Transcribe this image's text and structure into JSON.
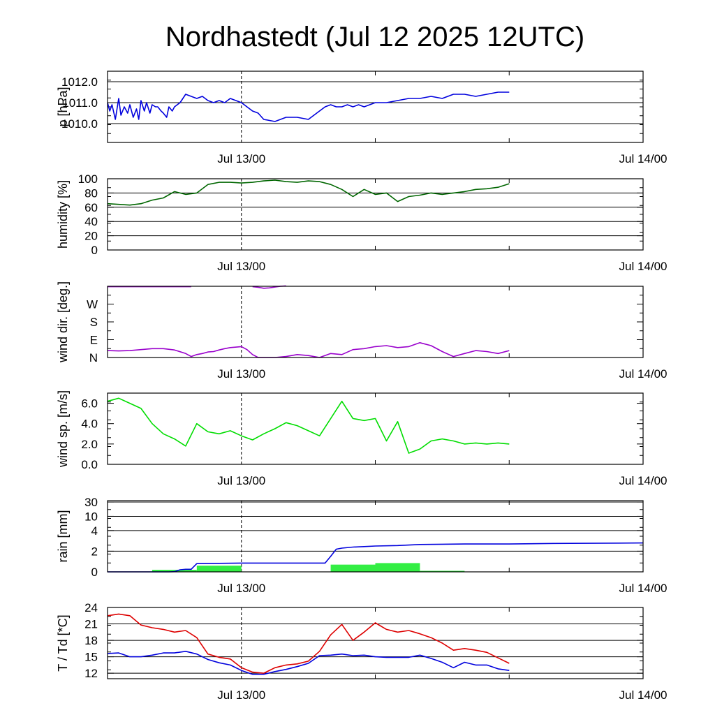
{
  "title": "Nordhastedt (Jul 12 2025 12UTC)",
  "x_tick_labels": [
    "Jul 13/00",
    "Jul 14/00"
  ],
  "chart_data": [
    {
      "id": "pressure",
      "type": "line",
      "ylabel": "p [hPa]",
      "ylim": [
        1009.1,
        1012.5
      ],
      "yticks": [
        {
          "label": "1010.0",
          "value": 1010.0
        },
        {
          "label": "1011.0",
          "value": 1011.0
        },
        {
          "label": "1012.0",
          "value": 1012.0
        }
      ],
      "gridlines": [
        1010.0,
        1011.0,
        1012.0
      ],
      "xlim": [
        -12,
        36
      ],
      "series": [
        {
          "color": "#0000dd",
          "x": [
            -12,
            -11.8,
            -11.6,
            -11.3,
            -11,
            -10.8,
            -10.5,
            -10.2,
            -10,
            -9.7,
            -9.4,
            -9.2,
            -9,
            -8.7,
            -8.5,
            -8.2,
            -8,
            -7.7,
            -7.5,
            -7.2,
            -7,
            -6.7,
            -6.5,
            -6.2,
            -6,
            -5.5,
            -5,
            -4.5,
            -4,
            -3.5,
            -3,
            -2.5,
            -2,
            -1.5,
            -1,
            -0.5,
            0,
            0.5,
            1,
            1.5,
            2,
            3,
            4,
            5,
            6,
            6.5,
            7,
            7.5,
            8,
            8.5,
            9,
            9.5,
            10,
            10.5,
            11,
            11.5,
            12,
            13,
            14,
            15,
            16,
            17,
            18,
            19,
            20,
            21,
            22,
            23,
            24
          ],
          "y": [
            1011.0,
            1010.6,
            1010.9,
            1010.2,
            1011.2,
            1010.4,
            1010.8,
            1010.5,
            1010.9,
            1010.3,
            1010.7,
            1010.2,
            1011.1,
            1010.6,
            1011.0,
            1010.5,
            1010.9,
            1010.8,
            1010.8,
            1010.6,
            1010.5,
            1010.3,
            1010.8,
            1010.6,
            1010.8,
            1011.0,
            1011.4,
            1011.3,
            1011.2,
            1011.3,
            1011.1,
            1011.0,
            1011.1,
            1011.0,
            1011.2,
            1011.1,
            1011.0,
            1010.8,
            1010.6,
            1010.5,
            1010.2,
            1010.1,
            1010.3,
            1010.3,
            1010.2,
            1010.4,
            1010.6,
            1010.8,
            1010.9,
            1010.8,
            1010.8,
            1010.9,
            1010.8,
            1010.9,
            1010.8,
            1010.9,
            1011.0,
            1011.0,
            1011.1,
            1011.2,
            1011.2,
            1011.3,
            1011.2,
            1011.4,
            1011.4,
            1011.3,
            1011.4,
            1011.5,
            1011.5
          ]
        }
      ]
    },
    {
      "id": "humidity",
      "type": "line",
      "ylabel": "humidity [%]",
      "ylim": [
        0,
        100
      ],
      "yticks": [
        {
          "label": "0",
          "value": 0
        },
        {
          "label": "20",
          "value": 20
        },
        {
          "label": "40",
          "value": 40
        },
        {
          "label": "60",
          "value": 60
        },
        {
          "label": "80",
          "value": 80
        },
        {
          "label": "100",
          "value": 100
        }
      ],
      "gridlines": [
        20,
        40,
        60,
        80
      ],
      "xlim": [
        -12,
        36
      ],
      "series": [
        {
          "color": "#006600",
          "x": [
            -12,
            -11,
            -10,
            -9,
            -8,
            -7,
            -6,
            -5,
            -4,
            -3,
            -2,
            -1,
            0,
            1,
            2,
            3,
            4,
            5,
            6,
            7,
            8,
            9,
            10,
            11,
            12,
            13,
            14,
            15,
            16,
            17,
            18,
            19,
            20,
            21,
            22,
            23,
            24
          ],
          "y": [
            65,
            64,
            63,
            65,
            70,
            73,
            82,
            78,
            80,
            92,
            95,
            95,
            94,
            95,
            97,
            98,
            96,
            95,
            97,
            96,
            92,
            85,
            75,
            85,
            78,
            80,
            68,
            75,
            77,
            80,
            78,
            80,
            82,
            85,
            86,
            88,
            93
          ]
        }
      ]
    },
    {
      "id": "wind_direction",
      "type": "line",
      "ylabel": "wind dir. [deg.]",
      "ylim": [
        0,
        360
      ],
      "yticks": [
        {
          "label": "N",
          "value": 0
        },
        {
          "label": "E",
          "value": 90
        },
        {
          "label": "S",
          "value": 180
        },
        {
          "label": "W",
          "value": 270
        }
      ],
      "gridlines": [],
      "xlim": [
        -12,
        36
      ],
      "series": [
        {
          "color": "#9900cc",
          "x": [
            -12,
            -11,
            -10,
            -9,
            -8,
            -7,
            -6,
            -5,
            -4.5,
            -4,
            -3.5,
            -3,
            -2.5,
            -2,
            -1.5,
            -1,
            0,
            0.5,
            1,
            1.5,
            2,
            3,
            4,
            5,
            6,
            7,
            8,
            9,
            10,
            11,
            12,
            13,
            14,
            15,
            16,
            17,
            18,
            19,
            20,
            21,
            22,
            23,
            24
          ],
          "y": [
            35,
            33,
            35,
            40,
            45,
            45,
            38,
            20,
            5,
            15,
            20,
            28,
            30,
            38,
            45,
            50,
            55,
            40,
            15,
            0,
            0,
            0,
            5,
            15,
            10,
            0,
            20,
            15,
            40,
            45,
            55,
            60,
            50,
            55,
            75,
            60,
            30,
            5,
            20,
            35,
            30,
            20,
            35
          ]
        },
        {
          "color": "#9900cc",
          "x": [
            -12,
            -11,
            -10,
            -9,
            -8,
            -7,
            -6,
            -5,
            -4.5
          ],
          "y": [
            358,
            358,
            358,
            358,
            358,
            358,
            358,
            358,
            358
          ]
        },
        {
          "color": "#9900cc",
          "x": [
            1,
            1.5,
            2,
            2.5,
            3,
            3.5,
            4
          ],
          "y": [
            358,
            355,
            350,
            352,
            356,
            360,
            362
          ]
        }
      ]
    },
    {
      "id": "wind_speed",
      "type": "line",
      "ylabel": "wind sp. [m/s]",
      "ylim": [
        0,
        7
      ],
      "yticks": [
        {
          "label": "0.0",
          "value": 0.0
        },
        {
          "label": "2.0",
          "value": 2.0
        },
        {
          "label": "4.0",
          "value": 4.0
        },
        {
          "label": "6.0",
          "value": 6.0
        }
      ],
      "gridlines": [],
      "xlim": [
        -12,
        36
      ],
      "series": [
        {
          "color": "#00dd00",
          "x": [
            -12,
            -11,
            -10,
            -9,
            -8,
            -7,
            -6,
            -5,
            -4,
            -3,
            -2,
            -1,
            0,
            1,
            2,
            3,
            4,
            5,
            6,
            7,
            8,
            9,
            10,
            11,
            12,
            13,
            14,
            15,
            16,
            17,
            18,
            19,
            20,
            21,
            22,
            23,
            24
          ],
          "y": [
            6.2,
            6.5,
            6.0,
            5.5,
            4.0,
            3.0,
            2.5,
            1.8,
            4.0,
            3.2,
            3.0,
            3.3,
            2.8,
            2.4,
            3.0,
            3.5,
            4.1,
            3.8,
            3.3,
            2.8,
            4.5,
            6.2,
            4.5,
            4.3,
            4.5,
            2.3,
            4.2,
            1.1,
            1.5,
            2.3,
            2.5,
            2.3,
            2.0,
            2.1,
            2.0,
            2.1,
            2.0
          ]
        }
      ]
    },
    {
      "id": "rain",
      "type": "bar+line",
      "ylabel": "rain [mm]",
      "yticks": [
        {
          "label": "0",
          "value": 0
        },
        {
          "label": "2",
          "value": 2
        },
        {
          "label": "4",
          "value": 4
        },
        {
          "label": "10",
          "value": 10
        },
        {
          "label": "30",
          "value": 30
        }
      ],
      "gridlines": [
        2,
        4,
        10,
        30
      ],
      "xlim": [
        -12,
        36
      ],
      "bars": {
        "color": "#33ee44",
        "x_start": [
          -8,
          -4,
          8,
          12,
          16
        ],
        "x_end": [
          -4,
          0,
          12,
          16,
          20
        ],
        "values": [
          0.2,
          0.6,
          0.7,
          0.85,
          0.1
        ]
      },
      "series": [
        {
          "color": "#0000dd",
          "x": [
            -12,
            -6.5,
            -6,
            -5.5,
            -5,
            -4.5,
            -4,
            0,
            7,
            7.5,
            8,
            8.5,
            9,
            10,
            11,
            12,
            14,
            16,
            20,
            24,
            28,
            36
          ],
          "y": [
            0,
            0,
            0.02,
            0.2,
            0.25,
            0.25,
            0.8,
            0.85,
            0.85,
            0.85,
            1.5,
            2.2,
            2.3,
            2.4,
            2.45,
            2.5,
            2.55,
            2.65,
            2.7,
            2.7,
            2.75,
            2.8
          ]
        }
      ]
    },
    {
      "id": "temperature",
      "type": "line",
      "ylabel": "T / Td [*C]",
      "ylim": [
        11,
        24
      ],
      "yticks": [
        {
          "label": "12",
          "value": 12
        },
        {
          "label": "15",
          "value": 15
        },
        {
          "label": "18",
          "value": 18
        },
        {
          "label": "21",
          "value": 21
        },
        {
          "label": "24",
          "value": 24
        }
      ],
      "gridlines": [
        12,
        15,
        18,
        21
      ],
      "xlim": [
        -12,
        36
      ],
      "series": [
        {
          "color": "#dd0000",
          "x": [
            -12,
            -11,
            -10,
            -9,
            -8,
            -7,
            -6,
            -5,
            -4,
            -3,
            -2,
            -1,
            0,
            1,
            2,
            3,
            4,
            5,
            6,
            7,
            8,
            9,
            10,
            11,
            12,
            13,
            14,
            15,
            16,
            17,
            18,
            19,
            20,
            21,
            22,
            23,
            24
          ],
          "y": [
            22.5,
            22.8,
            22.5,
            20.8,
            20.3,
            20.0,
            19.5,
            19.8,
            18.5,
            15.5,
            14.9,
            14.6,
            13.0,
            12.2,
            12.0,
            13.0,
            13.5,
            13.7,
            14.2,
            16.0,
            19.0,
            20.9,
            18.0,
            19.5,
            21.2,
            20.0,
            19.5,
            19.8,
            19.2,
            18.5,
            17.5,
            16.2,
            16.5,
            16.2,
            15.8,
            14.8,
            13.8
          ]
        },
        {
          "color": "#0000dd",
          "x": [
            -12,
            -11,
            -10,
            -9,
            -8,
            -7,
            -6,
            -5,
            -4,
            -3,
            -2,
            -1,
            0,
            1,
            2,
            3,
            4,
            5,
            6,
            7,
            8,
            9,
            10,
            11,
            12,
            13,
            14,
            15,
            16,
            17,
            18,
            19,
            20,
            21,
            22,
            23,
            24
          ],
          "y": [
            15.6,
            15.7,
            15.0,
            15.0,
            15.3,
            15.7,
            15.7,
            16.0,
            15.5,
            14.5,
            13.9,
            13.5,
            12.5,
            11.8,
            11.8,
            12.3,
            12.7,
            13.2,
            13.8,
            15.2,
            15.3,
            15.5,
            15.2,
            15.3,
            15.0,
            14.9,
            14.9,
            14.9,
            15.3,
            14.7,
            14.0,
            13.0,
            14.0,
            13.5,
            13.5,
            12.8,
            12.5
          ]
        }
      ]
    }
  ]
}
